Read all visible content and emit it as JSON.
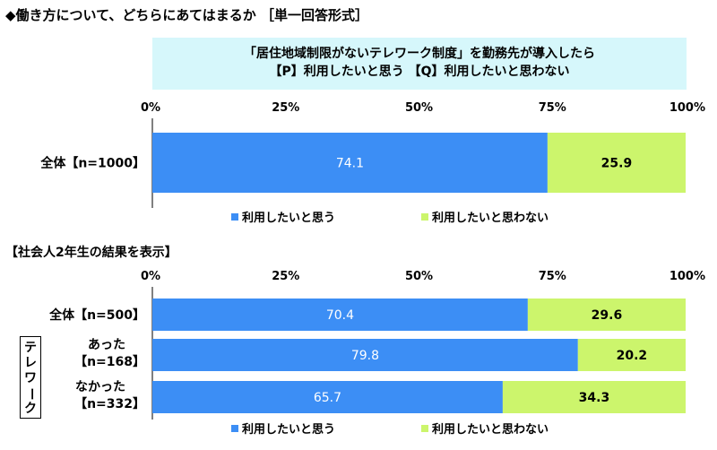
{
  "title": "◆働き方について、どちらにあてはまるか ［単一回答形式］",
  "question": {
    "line1": "「居住地域制限がないテレワーク制度」を勤務先が導入したら",
    "line2": "【P】利用したいと思う 【Q】利用したいと思わない"
  },
  "section2_title": "【社会人2年生の結果を表示】",
  "teleworker_group_label": "テレワーク",
  "colors": {
    "use": "#3c8ef5",
    "not_use": "#ccf56c"
  },
  "chart_data": [
    {
      "type": "bar",
      "orientation": "horizontal-stacked-100",
      "xlim": [
        0,
        100
      ],
      "ticks": [
        "0%",
        "25%",
        "50%",
        "75%",
        "100%"
      ],
      "grid": false,
      "legend_position": "bottom",
      "categories": [
        "全体【n=1000】"
      ],
      "series": [
        {
          "name": "利用したいと思う",
          "values": [
            74.1
          ]
        },
        {
          "name": "利用したいと思わない",
          "values": [
            25.9
          ]
        }
      ]
    },
    {
      "type": "bar",
      "orientation": "horizontal-stacked-100",
      "xlim": [
        0,
        100
      ],
      "ticks": [
        "0%",
        "25%",
        "50%",
        "75%",
        "100%"
      ],
      "grid": false,
      "legend_position": "bottom",
      "categories": [
        {
          "line1": "全体【n=500】"
        },
        {
          "line1": "あった",
          "line2": "【n=168】"
        },
        {
          "line1": "なかった",
          "line2": "【n=332】"
        }
      ],
      "series": [
        {
          "name": "利用したいと思う",
          "values": [
            70.4,
            79.8,
            65.7
          ]
        },
        {
          "name": "利用したいと思わない",
          "values": [
            29.6,
            20.2,
            34.3
          ]
        }
      ]
    }
  ]
}
